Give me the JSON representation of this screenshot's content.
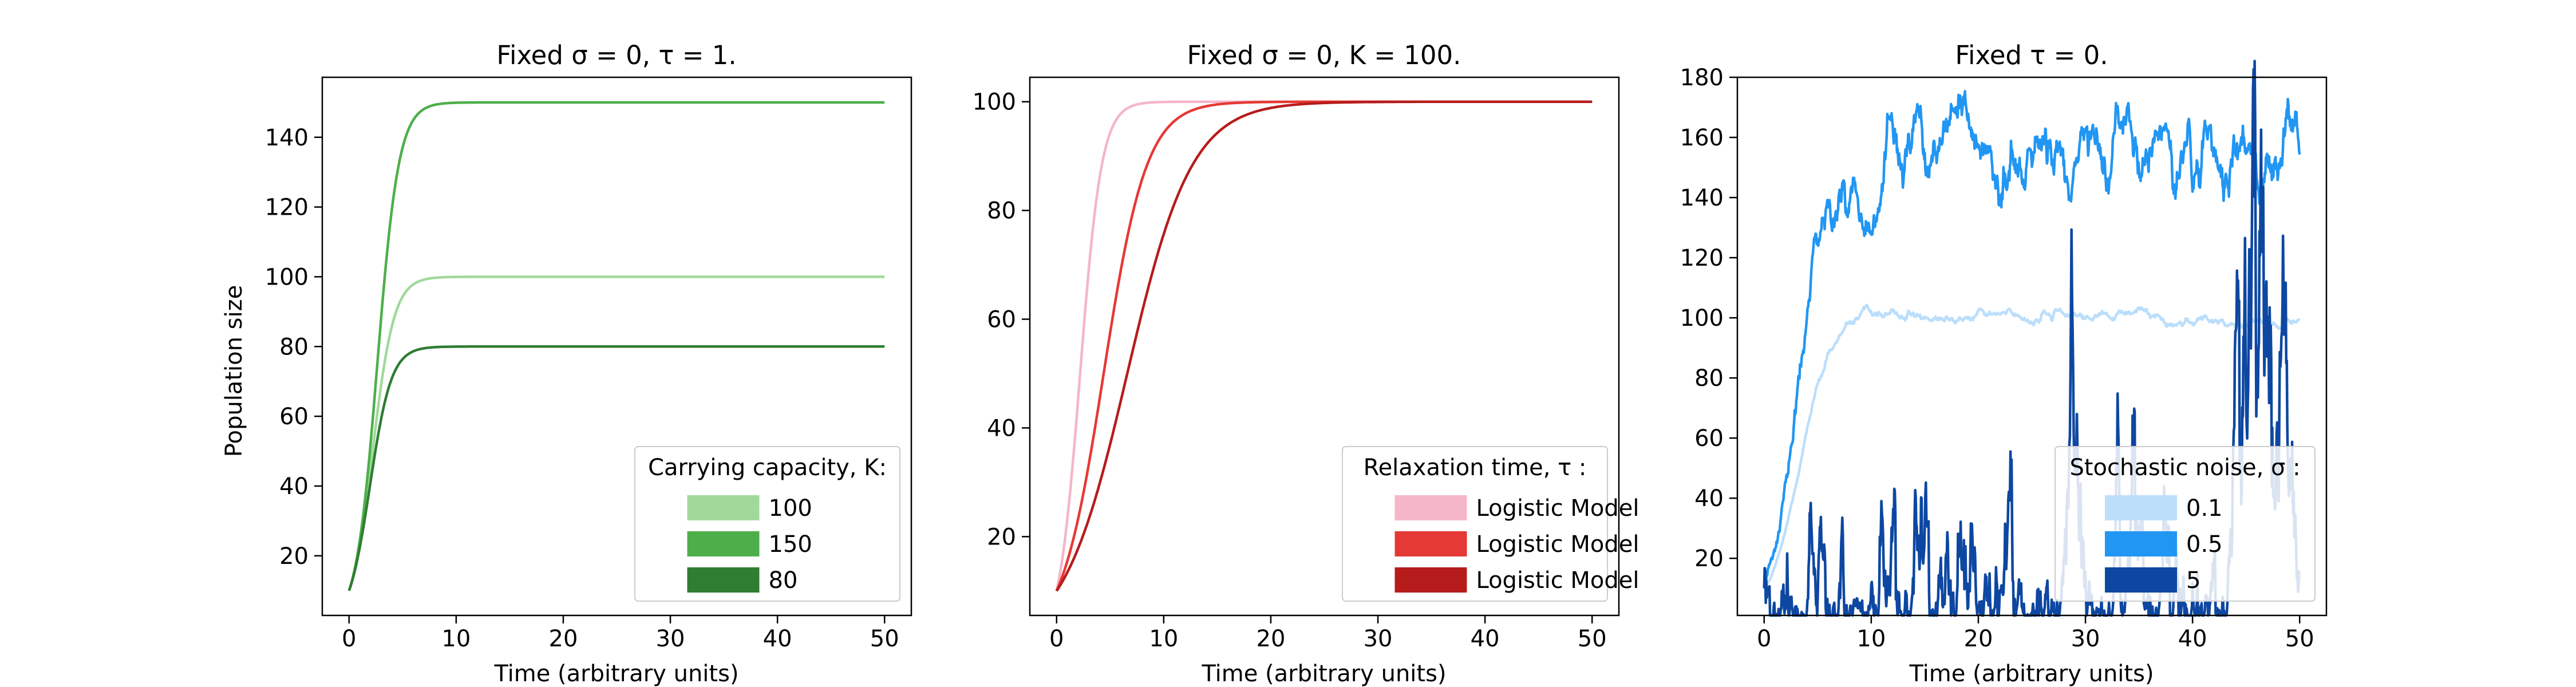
{
  "chart_data": [
    {
      "type": "line",
      "title": "Fixed σ = 0, τ = 1.",
      "xlabel": "Time (arbitrary units)",
      "ylabel": "Population size",
      "xlim": [
        -2.5,
        52.5
      ],
      "ylim": [
        2.9,
        157.2
      ],
      "xticks": [
        0,
        10,
        20,
        30,
        40,
        50
      ],
      "yticks": [
        20,
        40,
        60,
        80,
        100,
        120,
        140
      ],
      "grid": false,
      "model": "logistic",
      "legend": {
        "title": "Carrying capacity, K:",
        "placement": "lower-right"
      },
      "series": [
        {
          "name": "100",
          "color": "#a1d99b",
          "y0": 10,
          "K": 100,
          "rate": 1.0
        },
        {
          "name": "150",
          "color": "#4daf4a",
          "y0": 10,
          "K": 150,
          "rate": 1.0
        },
        {
          "name": "80",
          "color": "#2e7d32",
          "y0": 10,
          "K": 80,
          "rate": 1.0
        }
      ]
    },
    {
      "type": "line",
      "title": "Fixed σ = 0, K = 100.",
      "xlabel": "Time (arbitrary units)",
      "ylabel": "",
      "xlim": [
        -2.5,
        52.5
      ],
      "ylim": [
        5.5,
        104.5
      ],
      "xticks": [
        0,
        10,
        20,
        30,
        40,
        50
      ],
      "yticks": [
        20,
        40,
        60,
        80,
        100
      ],
      "grid": false,
      "model": "logistic",
      "legend": {
        "title": "Relaxation time, τ :",
        "placement": "lower-right"
      },
      "series": [
        {
          "name": "Logistic Model",
          "color": "#f4b6c8",
          "y0": 10,
          "K": 100,
          "rate": 1.0
        },
        {
          "name": "Logistic Model",
          "color": "#e53935",
          "y0": 10,
          "K": 100,
          "rate": 0.5
        },
        {
          "name": "Logistic Model",
          "color": "#b71c1c",
          "y0": 10,
          "K": 100,
          "rate": 0.333
        }
      ]
    },
    {
      "type": "line",
      "title": "Fixed τ = 0.",
      "xlabel": "Time (arbitrary units)",
      "ylabel": "",
      "xlim": [
        -2.5,
        52.5
      ],
      "ylim": [
        1.0,
        180.0
      ],
      "xticks": [
        0,
        10,
        20,
        30,
        40,
        50
      ],
      "yticks": [
        20,
        40,
        60,
        80,
        100,
        120,
        140,
        160,
        180
      ],
      "grid": false,
      "model": "stochastic-logistic",
      "legend": {
        "title": "Stochastic noise, σ :",
        "placement": "lower-right"
      },
      "series": [
        {
          "name": "0.1",
          "color": "#bbdefb",
          "y0": 10,
          "K": 100,
          "rate": 0.7,
          "sigma": 0.1,
          "seed": 11
        },
        {
          "name": "0.5",
          "color": "#2196f3",
          "y0": 10,
          "K": 150,
          "rate": 0.7,
          "sigma": 0.5,
          "seed": 23
        },
        {
          "name": "5",
          "color": "#0d47a1",
          "y0": 10,
          "K": 80,
          "rate": 0.5,
          "sigma": 5,
          "seed": 37
        }
      ]
    }
  ]
}
